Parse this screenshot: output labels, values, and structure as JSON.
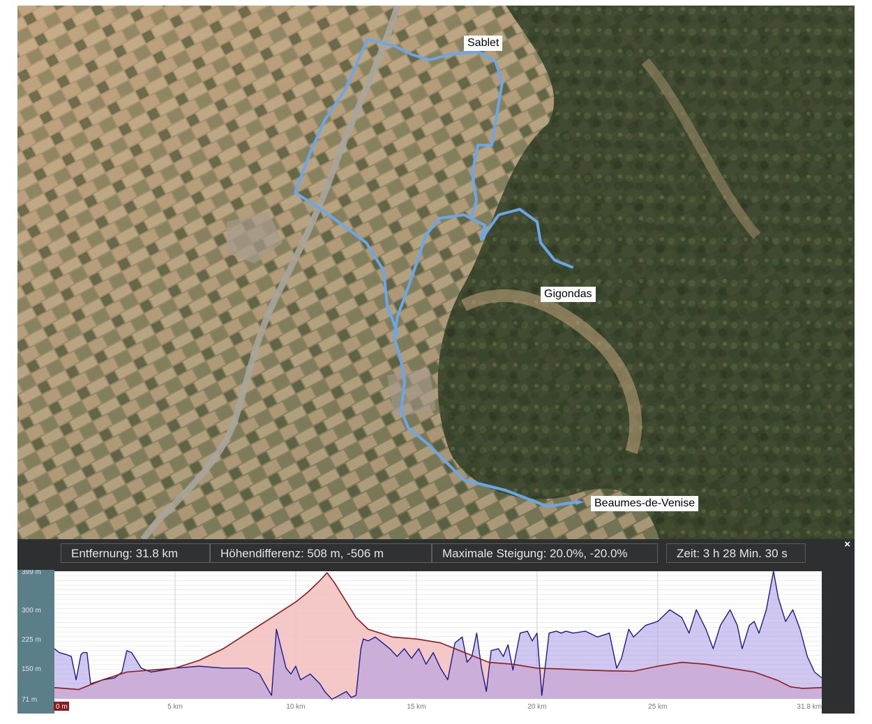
{
  "map": {
    "places": [
      {
        "id": "sablet",
        "name": "Sablet"
      },
      {
        "id": "gigondas",
        "name": "Gigondas"
      },
      {
        "id": "beaumes",
        "name": "Beaumes-de-Venise"
      }
    ],
    "colors": {
      "route": "#6aa7e8",
      "river": "#a9a59b",
      "bright_fields": "#c9ab86",
      "forest": "#2f3d24"
    }
  },
  "profile": {
    "stats": {
      "distance": "Entfernung: 31.8 km",
      "height_difference": "Höhendifferenz: 508 m, -506 m",
      "max_slope": "Maximale Steigung: 20.0%, -20.0%",
      "time": "Zeit: 3 h 28 Min. 30 s"
    },
    "close_label": "×",
    "colors": {
      "elevation_line": "#8b1a1a",
      "elevation_fill": "#f4c2c2",
      "slope_line": "#1c1a8a",
      "slope_fill": "#a99ae6",
      "grid": "#cfcfcf"
    }
  },
  "chart_data": {
    "type": "area",
    "xlabel": "",
    "ylabel": "",
    "xlim": [
      0,
      31.8
    ],
    "ylim": [
      71,
      399
    ],
    "x_ticks": [
      {
        "value": 0,
        "label": "0 m"
      },
      {
        "value": 5,
        "label": "5 km"
      },
      {
        "value": 10,
        "label": "10 km"
      },
      {
        "value": 15,
        "label": "15 km"
      },
      {
        "value": 20,
        "label": "20 km"
      },
      {
        "value": 25,
        "label": "25 km"
      },
      {
        "value": 31.8,
        "label": "31.8 km"
      }
    ],
    "y_ticks": [
      {
        "value": 399,
        "label": "399 m"
      },
      {
        "value": 300,
        "label": "300 m"
      },
      {
        "value": 225,
        "label": "225 m"
      },
      {
        "value": 150,
        "label": "150 m"
      },
      {
        "value": 71,
        "label": "71 m"
      }
    ],
    "series": [
      {
        "x": [
          0,
          1,
          2,
          3,
          4,
          5,
          6,
          7,
          8,
          9,
          10,
          10.5,
          11,
          11.3,
          11.6,
          12,
          12.5,
          13,
          14,
          15,
          16,
          17,
          18,
          19,
          20,
          21,
          22,
          23,
          24,
          25,
          26,
          27,
          28,
          29,
          30,
          30.5,
          31,
          31.8
        ],
        "values": [
          100,
          95,
          120,
          140,
          145,
          150,
          170,
          200,
          240,
          280,
          320,
          345,
          375,
          395,
          370,
          330,
          280,
          250,
          230,
          225,
          215,
          190,
          165,
          160,
          150,
          148,
          145,
          143,
          142,
          155,
          165,
          160,
          150,
          140,
          118,
          102,
          98,
          100
        ]
      },
      {
        "x": [
          0,
          0.2,
          0.5,
          0.7,
          0.9,
          1.1,
          1.2,
          1.35,
          1.5,
          2,
          2.5,
          2.8,
          3.0,
          3.2,
          3.6,
          4,
          5,
          6,
          7,
          8,
          8.5,
          8.9,
          9.0,
          9.2,
          9.4,
          9.6,
          9.8,
          10,
          10.2,
          10.6,
          11,
          11.2,
          11.5,
          11.8,
          12.1,
          12.3,
          12.5,
          12.7,
          12.8,
          13.0,
          13.3,
          13.6,
          13.9,
          14.2,
          14.5,
          14.8,
          15.1,
          15.4,
          15.7,
          16.0,
          16.3,
          16.6,
          16.9,
          17.1,
          17.3,
          17.5,
          17.7,
          17.9,
          18.1,
          18.4,
          18.6,
          18.8,
          19.0,
          19.3,
          19.6,
          19.8,
          20.0,
          20.2,
          20.5,
          20.8,
          21.0,
          21.2,
          21.5,
          22.0,
          22.5,
          23.0,
          23.3,
          23.5,
          23.8,
          24.0,
          24.5,
          25.0,
          25.5,
          26.0,
          26.3,
          26.6,
          27.0,
          27.3,
          27.6,
          28.0,
          28.3,
          28.5,
          28.8,
          29.0,
          29.2,
          29.5,
          29.8,
          30.0,
          30.3,
          30.6,
          30.9,
          31.2,
          31.5,
          31.8
        ],
        "values": [
          200,
          190,
          185,
          180,
          120,
          185,
          190,
          190,
          110,
          120,
          125,
          140,
          195,
          190,
          150,
          140,
          150,
          155,
          150,
          150,
          135,
          90,
          80,
          250,
          200,
          150,
          135,
          155,
          120,
          135,
          110,
          90,
          70,
          80,
          90,
          75,
          80,
          200,
          225,
          220,
          230,
          215,
          200,
          180,
          200,
          175,
          200,
          160,
          190,
          150,
          120,
          215,
          230,
          165,
          180,
          240,
          150,
          90,
          195,
          200,
          180,
          210,
          145,
          240,
          245,
          220,
          240,
          80,
          240,
          245,
          240,
          245,
          240,
          245,
          230,
          240,
          150,
          175,
          250,
          230,
          260,
          270,
          300,
          280,
          240,
          300,
          250,
          200,
          260,
          300,
          260,
          200,
          260,
          270,
          240,
          300,
          399,
          330,
          270,
          300,
          250,
          180,
          140,
          125
        ]
      }
    ],
    "grid": true
  }
}
